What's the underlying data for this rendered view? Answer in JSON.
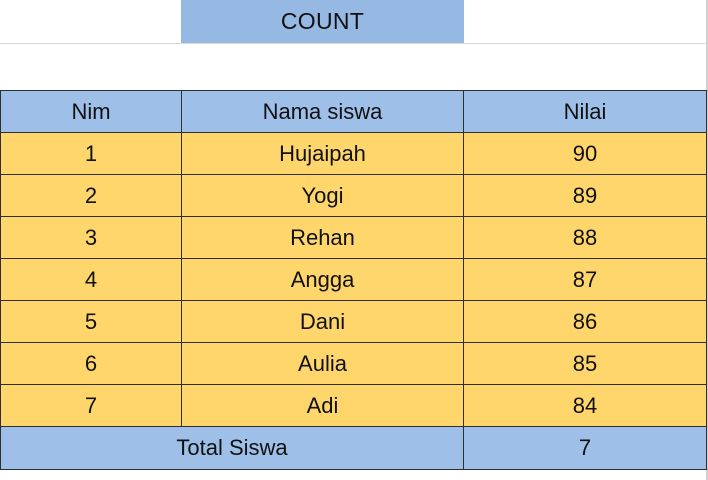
{
  "title": "COUNT",
  "table": {
    "headers": [
      "Nim",
      "Nama siswa",
      "Nilai"
    ],
    "rows": [
      {
        "nim": "1",
        "nama": "Hujaipah",
        "nilai": "90"
      },
      {
        "nim": "2",
        "nama": "Yogi",
        "nilai": "89"
      },
      {
        "nim": "3",
        "nama": "Rehan",
        "nilai": "88"
      },
      {
        "nim": "4",
        "nama": "Angga",
        "nilai": "87"
      },
      {
        "nim": "5",
        "nama": "Dani",
        "nilai": "86"
      },
      {
        "nim": "6",
        "nama": "Aulia",
        "nilai": "85"
      },
      {
        "nim": "7",
        "nama": "Adi",
        "nilai": "84"
      }
    ],
    "footer": {
      "label": "Total Siswa",
      "value": "7"
    }
  },
  "colors": {
    "header_fill": "#9ec0e8",
    "data_fill": "#ffd66b",
    "title_fill": "#95b9e2"
  }
}
